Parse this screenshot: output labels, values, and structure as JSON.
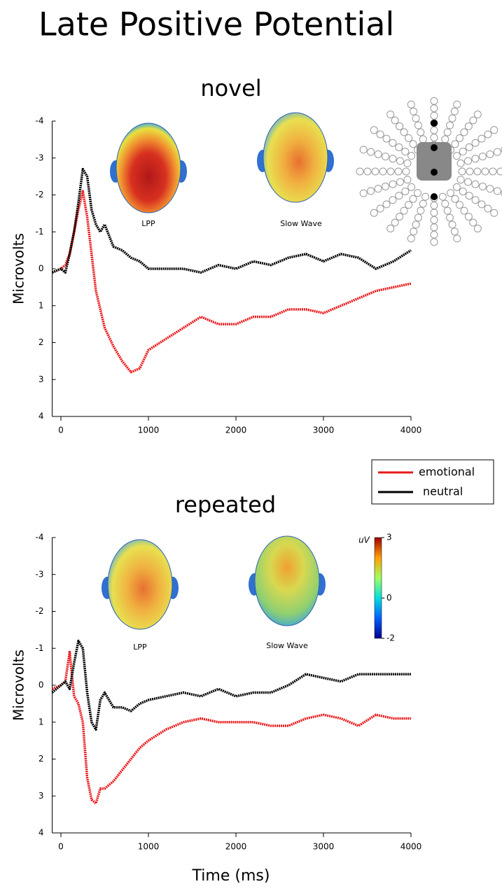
{
  "title": "Late Positive Potential",
  "chart_data": [
    {
      "type": "line",
      "title": "novel",
      "y_label": "Microvolts",
      "x": [
        -100,
        0,
        50,
        100,
        150,
        200,
        250,
        300,
        350,
        400,
        450,
        500,
        600,
        700,
        800,
        900,
        1000,
        1200,
        1400,
        1600,
        1800,
        2000,
        2200,
        2400,
        2600,
        2800,
        3000,
        3200,
        3400,
        3600,
        3800,
        4000
      ],
      "series": [
        {
          "name": "emotional",
          "color": "#e8191b",
          "values": [
            0.1,
            0,
            -0.1,
            -0.4,
            -1.0,
            -1.6,
            -2.1,
            -1.4,
            -0.4,
            0.6,
            1.1,
            1.6,
            2.1,
            2.5,
            2.8,
            2.7,
            2.2,
            1.9,
            1.6,
            1.3,
            1.5,
            1.5,
            1.3,
            1.3,
            1.1,
            1.1,
            1.2,
            1.0,
            0.8,
            0.6,
            0.5,
            0.4
          ]
        },
        {
          "name": "neutral",
          "color": "#000000",
          "values": [
            0.1,
            0,
            0.1,
            -0.4,
            -1.0,
            -1.8,
            -2.7,
            -2.5,
            -1.6,
            -1.2,
            -1.0,
            -1.2,
            -0.6,
            -0.5,
            -0.3,
            -0.2,
            0.0,
            0.0,
            0.0,
            0.1,
            -0.1,
            0.0,
            -0.2,
            -0.1,
            -0.3,
            -0.4,
            -0.2,
            -0.4,
            -0.3,
            0.0,
            -0.2,
            -0.5
          ]
        }
      ],
      "xlim": [
        -100,
        4000
      ],
      "xticks": [
        0,
        1000,
        2000,
        3000,
        4000
      ],
      "ylim": [
        -4,
        4
      ],
      "yticks": [
        -4,
        -3,
        -2,
        -1,
        0,
        1,
        2,
        3,
        4
      ],
      "y_inverted": true,
      "annotations": [
        "LPP",
        "Slow Wave"
      ]
    },
    {
      "type": "line",
      "title": "repeated",
      "y_label": "Microvolts",
      "x_label": "Time (ms)",
      "x": [
        -100,
        0,
        50,
        100,
        150,
        200,
        250,
        300,
        350,
        400,
        450,
        500,
        600,
        700,
        800,
        900,
        1000,
        1200,
        1400,
        1600,
        1800,
        2000,
        2200,
        2400,
        2600,
        2800,
        3000,
        3200,
        3400,
        3600,
        3800,
        4000
      ],
      "series": [
        {
          "name": "emotional",
          "color": "#e8191b",
          "values": [
            0.1,
            0,
            -0.1,
            -0.9,
            0.3,
            0.5,
            1.0,
            2.5,
            3.1,
            3.2,
            2.8,
            2.8,
            2.6,
            2.3,
            2.0,
            1.7,
            1.5,
            1.2,
            1.0,
            0.9,
            1.0,
            1.0,
            1.0,
            1.1,
            1.1,
            0.9,
            0.8,
            0.9,
            1.1,
            0.8,
            0.9,
            0.9
          ]
        },
        {
          "name": "neutral",
          "color": "#000000",
          "values": [
            0.2,
            0,
            -0.1,
            0.1,
            -0.6,
            -1.2,
            -1.0,
            0.2,
            1.0,
            1.2,
            0.4,
            0.2,
            0.6,
            0.6,
            0.7,
            0.5,
            0.4,
            0.3,
            0.2,
            0.3,
            0.1,
            0.3,
            0.2,
            0.2,
            0.0,
            -0.3,
            -0.2,
            -0.1,
            -0.3,
            -0.3,
            -0.3,
            -0.3
          ]
        }
      ],
      "xlim": [
        -100,
        4000
      ],
      "xticks": [
        0,
        1000,
        2000,
        3000,
        4000
      ],
      "ylim": [
        -4,
        4
      ],
      "yticks": [
        -4,
        -3,
        -2,
        -1,
        0,
        1,
        2,
        3,
        4
      ],
      "y_inverted": true,
      "annotations": [
        "LPP",
        "Slow Wave"
      ],
      "colorbar": {
        "label": "uV",
        "lim": [
          -2,
          3
        ],
        "ticks": [
          3,
          0,
          -2
        ]
      }
    }
  ]
}
